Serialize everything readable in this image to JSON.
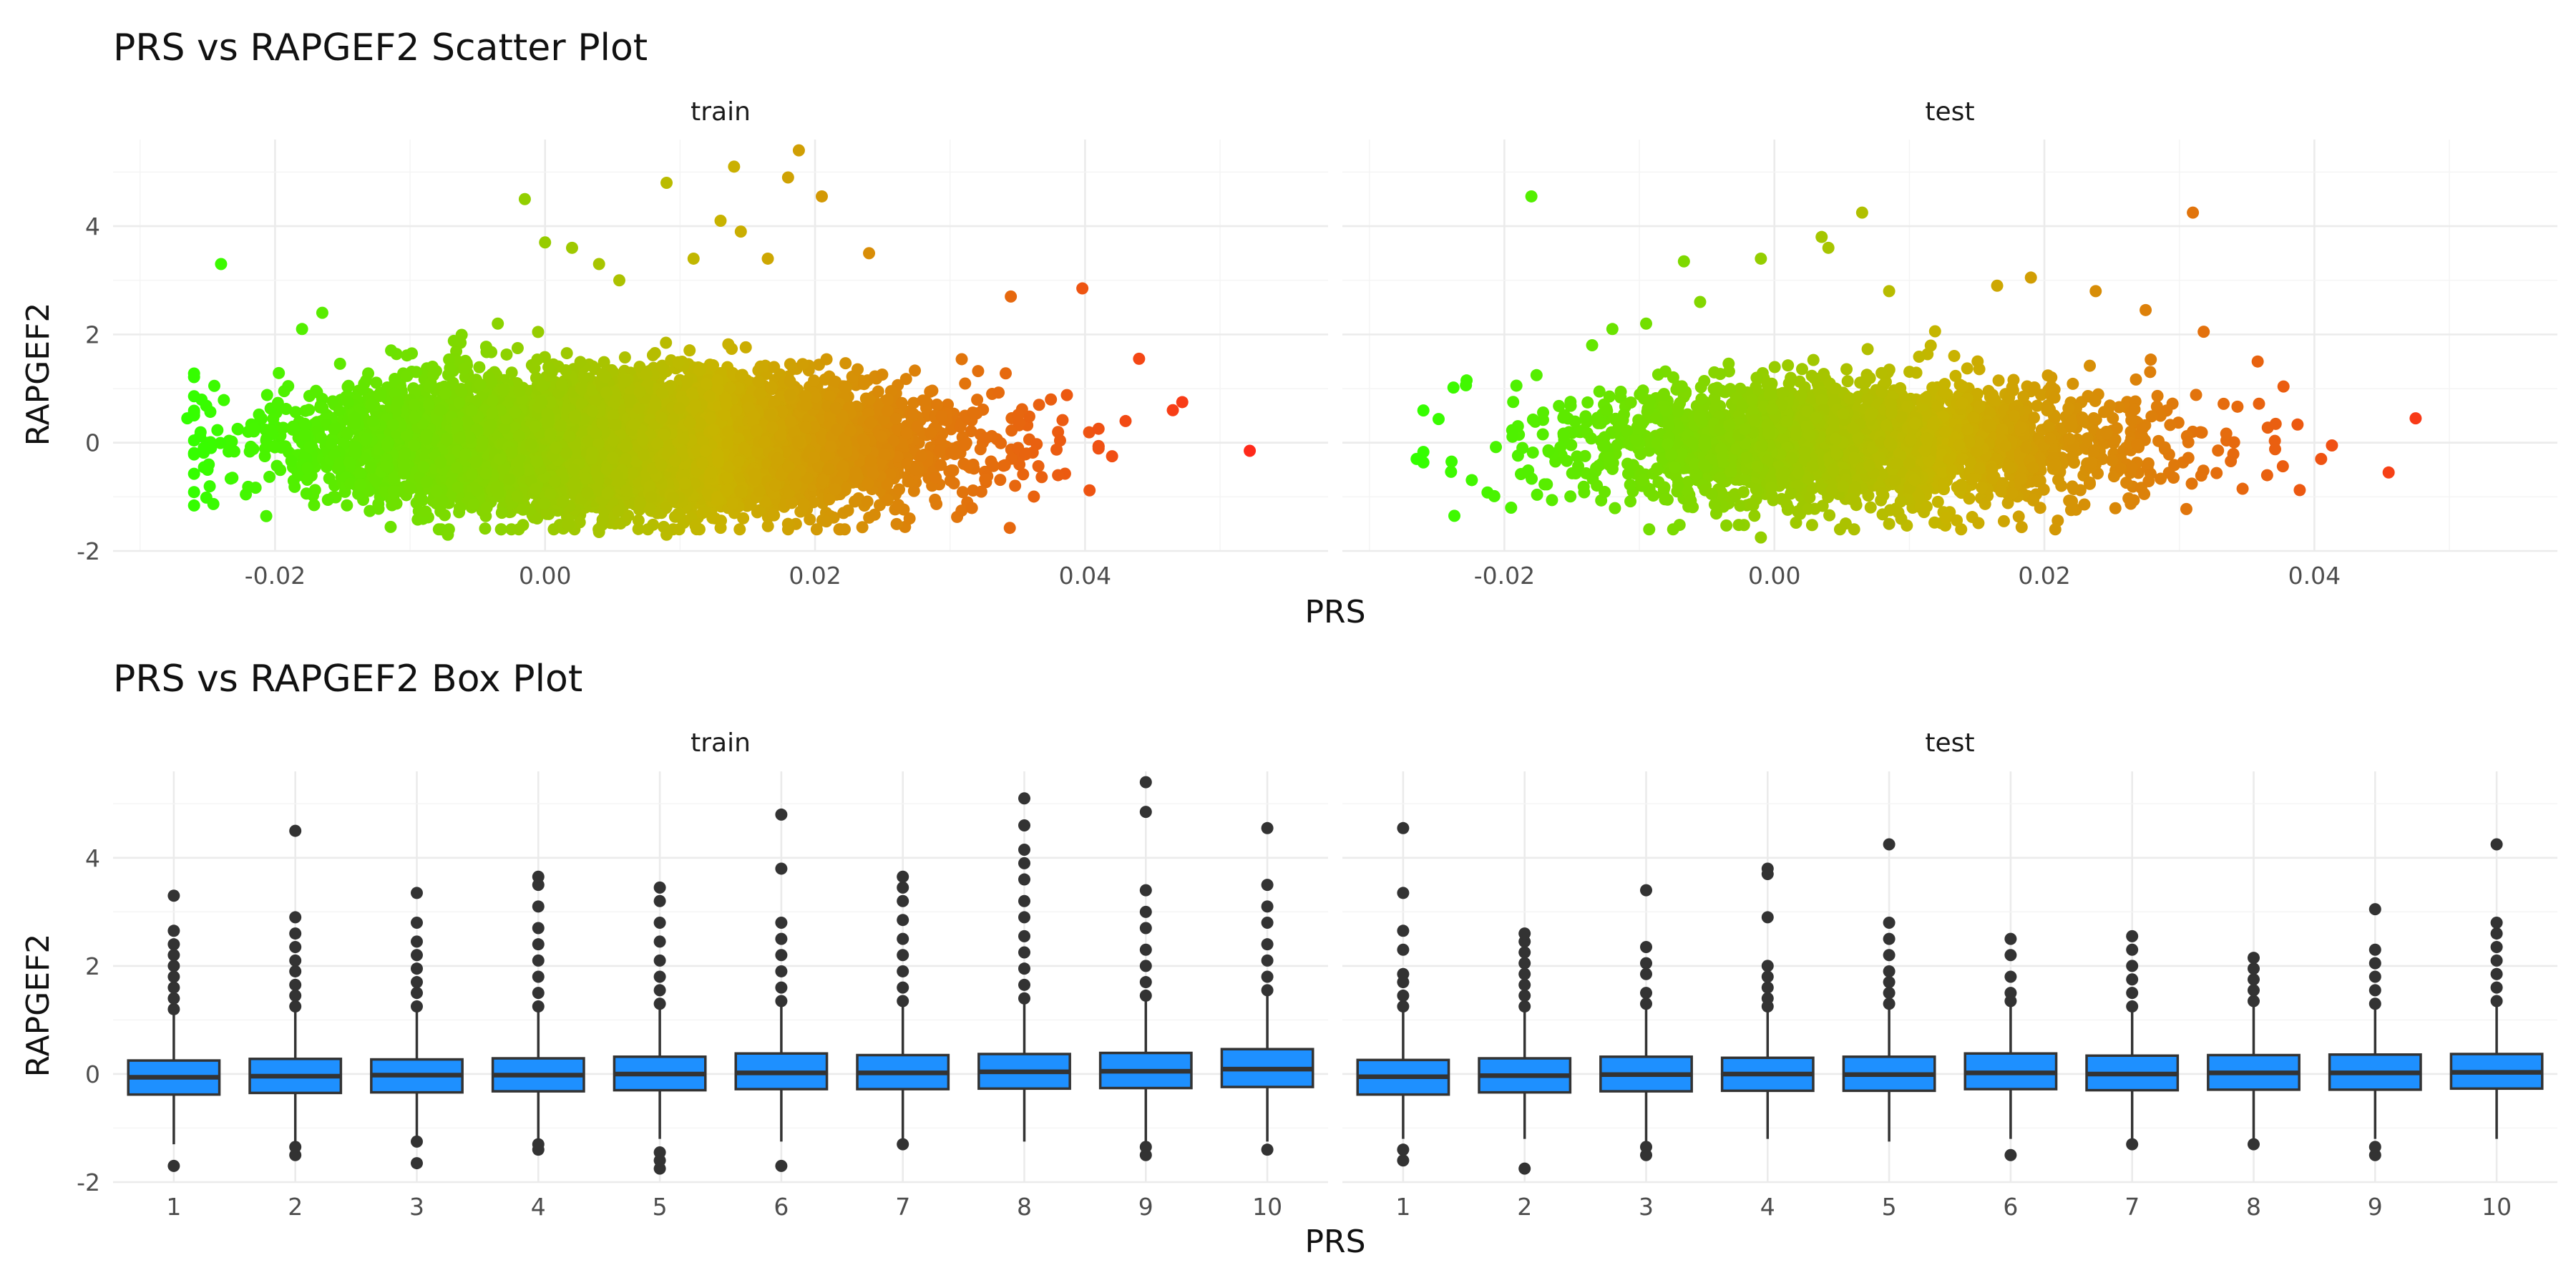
{
  "chart_data": [
    {
      "type": "scatter",
      "title": "PRS vs RAPGEF2 Scatter Plot",
      "xlabel": "PRS",
      "ylabel": "RAPGEF2",
      "xlim": [
        -0.032,
        0.058
      ],
      "ylim": [
        -2.0,
        5.6
      ],
      "x_ticks": [
        -0.02,
        0.0,
        0.02,
        0.04
      ],
      "x_tick_labels": [
        "-0.02",
        "0.00",
        "0.02",
        "0.04"
      ],
      "y_ticks": [
        -2,
        0,
        2,
        4
      ],
      "y_tick_labels": [
        "-2",
        "0",
        "2",
        "4"
      ],
      "grid": true,
      "color_encoding": {
        "variable": "PRS",
        "low": "#33ff00",
        "mid": "#c8b400",
        "high": "#ff2a1a"
      },
      "panels": [
        {
          "name": "train",
          "n_points": 9000,
          "x_mean": 0.006,
          "x_sd": 0.0105,
          "y_mean": 0.0,
          "y_sd": 0.55,
          "outliers": [
            {
              "x": -0.0265,
              "y": 0.45
            },
            {
              "x": -0.024,
              "y": 3.3
            },
            {
              "x": -0.0245,
              "y": 1.05
            },
            {
              "x": -0.025,
              "y": -0.5
            },
            {
              "x": -0.018,
              "y": 2.1
            },
            {
              "x": -0.0165,
              "y": 2.4
            },
            {
              "x": -0.0035,
              "y": 2.2
            },
            {
              "x": -0.0015,
              "y": 4.5
            },
            {
              "x": 0.0,
              "y": 3.7
            },
            {
              "x": 0.002,
              "y": 3.6
            },
            {
              "x": 0.004,
              "y": 3.3
            },
            {
              "x": 0.0055,
              "y": 3.0
            },
            {
              "x": 0.009,
              "y": 4.8
            },
            {
              "x": 0.011,
              "y": 3.4
            },
            {
              "x": 0.013,
              "y": 4.1
            },
            {
              "x": 0.014,
              "y": 5.1
            },
            {
              "x": 0.0145,
              "y": 3.9
            },
            {
              "x": 0.0165,
              "y": 3.4
            },
            {
              "x": 0.018,
              "y": 4.9
            },
            {
              "x": 0.0188,
              "y": 5.4
            },
            {
              "x": 0.0205,
              "y": 4.55
            },
            {
              "x": 0.024,
              "y": 3.5
            },
            {
              "x": 0.0345,
              "y": 2.7
            },
            {
              "x": 0.0398,
              "y": 2.85
            },
            {
              "x": 0.044,
              "y": 1.55
            },
            {
              "x": 0.0465,
              "y": 0.6
            },
            {
              "x": 0.0472,
              "y": 0.75
            },
            {
              "x": 0.0522,
              "y": -0.15
            },
            {
              "x": 0.042,
              "y": -0.25
            },
            {
              "x": -0.0072,
              "y": -1.7
            },
            {
              "x": 0.004,
              "y": -1.65
            },
            {
              "x": 0.009,
              "y": -1.7
            },
            {
              "x": 0.018,
              "y": -1.5
            },
            {
              "x": 0.027,
              "y": -1.4
            },
            {
              "x": 0.038,
              "y": -0.6
            },
            {
              "x": 0.043,
              "y": 0.4
            }
          ]
        },
        {
          "name": "test",
          "n_points": 2600,
          "x_mean": 0.006,
          "x_sd": 0.0105,
          "y_mean": 0.0,
          "y_sd": 0.55,
          "outliers": [
            {
              "x": -0.0265,
              "y": -0.3
            },
            {
              "x": -0.0228,
              "y": 1.15
            },
            {
              "x": -0.018,
              "y": 4.55
            },
            {
              "x": -0.0195,
              "y": -1.2
            },
            {
              "x": -0.0135,
              "y": 1.8
            },
            {
              "x": -0.012,
              "y": 2.1
            },
            {
              "x": -0.0095,
              "y": 2.2
            },
            {
              "x": -0.0067,
              "y": 3.35
            },
            {
              "x": -0.0055,
              "y": 2.6
            },
            {
              "x": -0.001,
              "y": 3.4
            },
            {
              "x": 0.0035,
              "y": 3.8
            },
            {
              "x": 0.004,
              "y": 3.6
            },
            {
              "x": 0.0065,
              "y": 4.25
            },
            {
              "x": 0.0085,
              "y": 2.8
            },
            {
              "x": 0.0165,
              "y": 2.9
            },
            {
              "x": 0.019,
              "y": 3.05
            },
            {
              "x": 0.0238,
              "y": 2.8
            },
            {
              "x": 0.0275,
              "y": 2.45
            },
            {
              "x": 0.031,
              "y": 4.25
            },
            {
              "x": 0.0318,
              "y": 2.05
            },
            {
              "x": 0.0358,
              "y": 1.5
            },
            {
              "x": 0.0405,
              "y": -0.3
            },
            {
              "x": 0.0413,
              "y": -0.05
            },
            {
              "x": 0.0455,
              "y": -0.55
            },
            {
              "x": 0.0475,
              "y": 0.45
            },
            {
              "x": -0.0075,
              "y": -1.6
            },
            {
              "x": -0.001,
              "y": -1.75
            },
            {
              "x": 0.0085,
              "y": -1.5
            },
            {
              "x": 0.017,
              "y": -1.45
            },
            {
              "x": 0.0365,
              "y": -0.6
            }
          ]
        }
      ]
    },
    {
      "type": "box",
      "title": "PRS vs RAPGEF2 Box Plot",
      "xlabel": "PRS",
      "ylabel": "RAPGEF2",
      "categories": [
        "1",
        "2",
        "3",
        "4",
        "5",
        "6",
        "7",
        "8",
        "9",
        "10"
      ],
      "ylim": [
        -2.0,
        5.6
      ],
      "y_ticks": [
        -2,
        0,
        2,
        4
      ],
      "y_tick_labels": [
        "-2",
        "0",
        "2",
        "4"
      ],
      "grid": true,
      "box_fill": "#1e90ff",
      "box_stroke": "#333333",
      "panels": [
        {
          "name": "train",
          "boxes": [
            {
              "q1": -0.38,
              "median": -0.06,
              "q3": 0.25,
              "lower": -1.3,
              "upper": 1.15,
              "outliers": [
                -1.7,
                1.2,
                1.4,
                1.6,
                1.8,
                2.0,
                2.2,
                2.4,
                2.65,
                3.3
              ]
            },
            {
              "q1": -0.35,
              "median": -0.04,
              "q3": 0.28,
              "lower": -1.25,
              "upper": 1.2,
              "outliers": [
                -1.5,
                -1.35,
                1.25,
                1.45,
                1.65,
                1.9,
                2.1,
                2.35,
                2.6,
                2.9,
                4.5
              ]
            },
            {
              "q1": -0.34,
              "median": -0.02,
              "q3": 0.27,
              "lower": -1.2,
              "upper": 1.2,
              "outliers": [
                -1.65,
                -1.25,
                1.25,
                1.5,
                1.7,
                1.95,
                2.2,
                2.45,
                2.8,
                3.35
              ]
            },
            {
              "q1": -0.32,
              "median": -0.02,
              "q3": 0.29,
              "lower": -1.2,
              "upper": 1.2,
              "outliers": [
                -1.4,
                -1.3,
                1.25,
                1.5,
                1.8,
                2.1,
                2.4,
                2.7,
                3.1,
                3.5,
                3.65
              ]
            },
            {
              "q1": -0.3,
              "median": 0.0,
              "q3": 0.32,
              "lower": -1.2,
              "upper": 1.25,
              "outliers": [
                -1.75,
                -1.6,
                -1.45,
                1.3,
                1.55,
                1.8,
                2.1,
                2.45,
                2.8,
                3.2,
                3.45
              ]
            },
            {
              "q1": -0.28,
              "median": 0.02,
              "q3": 0.38,
              "lower": -1.25,
              "upper": 1.3,
              "outliers": [
                -1.7,
                1.35,
                1.6,
                1.9,
                2.2,
                2.5,
                2.8,
                3.8,
                4.8
              ]
            },
            {
              "q1": -0.28,
              "median": 0.02,
              "q3": 0.35,
              "lower": -1.25,
              "upper": 1.3,
              "outliers": [
                -1.3,
                1.35,
                1.6,
                1.9,
                2.2,
                2.5,
                2.85,
                3.2,
                3.45,
                3.65
              ]
            },
            {
              "q1": -0.27,
              "median": 0.04,
              "q3": 0.37,
              "lower": -1.25,
              "upper": 1.35,
              "outliers": [
                1.4,
                1.65,
                1.95,
                2.25,
                2.55,
                2.9,
                3.2,
                3.6,
                3.9,
                4.15,
                4.6,
                5.1
              ]
            },
            {
              "q1": -0.26,
              "median": 0.05,
              "q3": 0.39,
              "lower": -1.25,
              "upper": 1.4,
              "outliers": [
                -1.5,
                -1.35,
                1.45,
                1.7,
                2.0,
                2.3,
                2.7,
                3.0,
                3.4,
                4.85,
                5.4
              ]
            },
            {
              "q1": -0.24,
              "median": 0.09,
              "q3": 0.46,
              "lower": -1.25,
              "upper": 1.5,
              "outliers": [
                -1.4,
                1.55,
                1.8,
                2.1,
                2.4,
                2.8,
                3.1,
                3.5,
                4.55
              ]
            }
          ]
        },
        {
          "name": "test",
          "boxes": [
            {
              "q1": -0.38,
              "median": -0.05,
              "q3": 0.26,
              "lower": -1.2,
              "upper": 1.2,
              "outliers": [
                -1.6,
                -1.4,
                1.25,
                1.45,
                1.7,
                1.85,
                2.3,
                2.65,
                3.35,
                4.55
              ]
            },
            {
              "q1": -0.34,
              "median": -0.03,
              "q3": 0.29,
              "lower": -1.2,
              "upper": 1.2,
              "outliers": [
                -1.75,
                1.25,
                1.45,
                1.65,
                1.85,
                2.05,
                2.25,
                2.45,
                2.6
              ]
            },
            {
              "q1": -0.32,
              "median": -0.01,
              "q3": 0.32,
              "lower": -1.25,
              "upper": 1.25,
              "outliers": [
                -1.5,
                -1.35,
                1.3,
                1.5,
                1.85,
                2.05,
                2.35,
                3.4
              ]
            },
            {
              "q1": -0.31,
              "median": 0.0,
              "q3": 0.3,
              "lower": -1.2,
              "upper": 1.2,
              "outliers": [
                1.25,
                1.4,
                1.6,
                1.8,
                2.0,
                2.9,
                3.7,
                3.8
              ]
            },
            {
              "q1": -0.31,
              "median": -0.01,
              "q3": 0.32,
              "lower": -1.25,
              "upper": 1.25,
              "outliers": [
                1.3,
                1.5,
                1.7,
                1.9,
                2.2,
                2.5,
                2.8,
                4.25
              ]
            },
            {
              "q1": -0.28,
              "median": 0.02,
              "q3": 0.38,
              "lower": -1.2,
              "upper": 1.25,
              "outliers": [
                -1.5,
                1.35,
                1.5,
                1.8,
                2.2,
                2.5
              ]
            },
            {
              "q1": -0.3,
              "median": 0.0,
              "q3": 0.34,
              "lower": -1.2,
              "upper": 1.2,
              "outliers": [
                -1.3,
                1.25,
                1.5,
                1.75,
                2.0,
                2.3,
                2.55
              ]
            },
            {
              "q1": -0.29,
              "median": 0.02,
              "q3": 0.35,
              "lower": -1.2,
              "upper": 1.25,
              "outliers": [
                -1.3,
                1.35,
                1.55,
                1.75,
                1.95,
                2.15
              ]
            },
            {
              "q1": -0.29,
              "median": 0.02,
              "q3": 0.36,
              "lower": -1.2,
              "upper": 1.25,
              "outliers": [
                -1.5,
                -1.35,
                1.3,
                1.55,
                1.8,
                2.05,
                2.3,
                3.05
              ]
            },
            {
              "q1": -0.27,
              "median": 0.03,
              "q3": 0.37,
              "lower": -1.2,
              "upper": 1.3,
              "outliers": [
                1.35,
                1.6,
                1.85,
                2.1,
                2.35,
                2.6,
                2.8,
                4.25
              ]
            }
          ]
        }
      ]
    }
  ]
}
